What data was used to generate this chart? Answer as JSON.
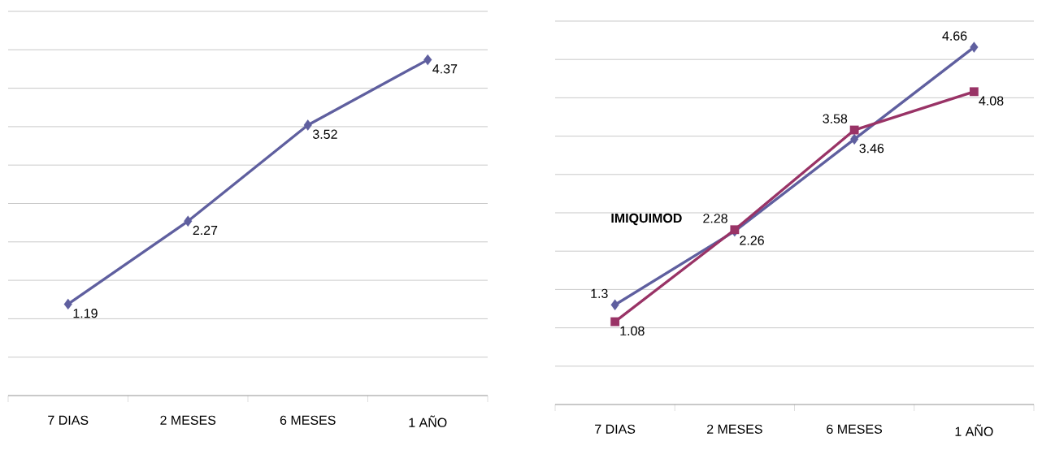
{
  "chart_data": [
    {
      "type": "line",
      "categories": [
        "7 DIAS",
        "2 MESES",
        "6 MESES",
        "1 AÑO"
      ],
      "series": [
        {
          "color": "#5f5f9f",
          "marker": "diamond",
          "values": [
            1.19,
            2.27,
            3.52,
            4.37
          ]
        }
      ],
      "ylim": [
        0,
        5
      ],
      "yticks": [
        0,
        0.5,
        1,
        1.5,
        2,
        2.5,
        3,
        3.5,
        4,
        4.5,
        5
      ],
      "tick_labels": "x",
      "grid": "y",
      "data_labels": true
    },
    {
      "type": "line",
      "categories": [
        "7 DIAS",
        "2 MESES",
        "6 MESES",
        "1 AÑO"
      ],
      "series": [
        {
          "color": "#5f5f9f",
          "marker": "diamond",
          "values": [
            1.3,
            2.26,
            3.46,
            4.66
          ]
        },
        {
          "name": "IMIQUIMOD",
          "color": "#993366",
          "marker": "square",
          "values": [
            1.08,
            2.28,
            3.58,
            4.08
          ]
        }
      ],
      "ylim": [
        0,
        5
      ],
      "yticks": [
        0,
        0.5,
        1,
        1.5,
        2,
        2.5,
        3,
        3.5,
        4,
        4.5,
        5
      ],
      "tick_labels": "x",
      "grid": "y",
      "data_labels": true
    }
  ]
}
